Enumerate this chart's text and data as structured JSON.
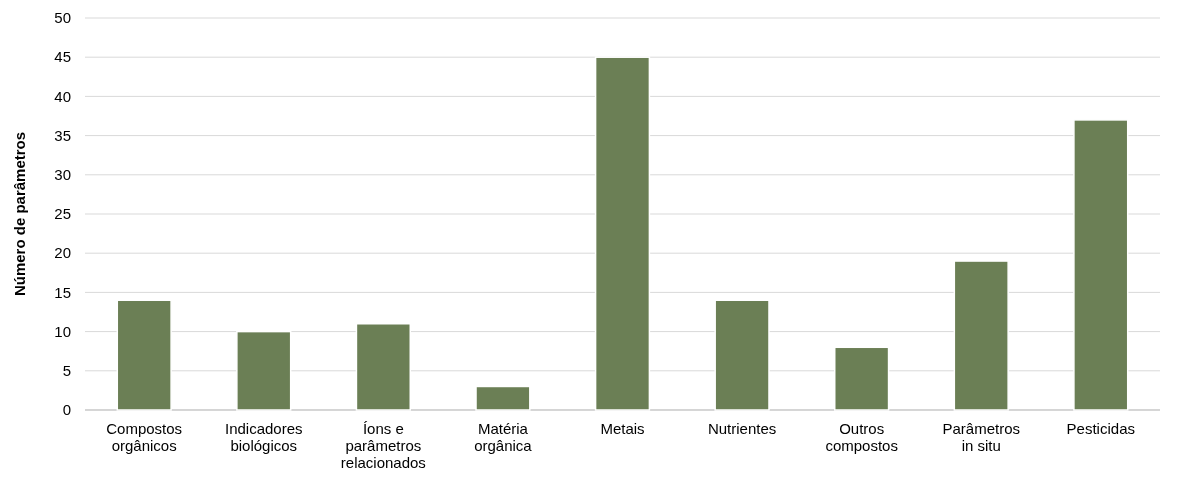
{
  "chart_data": {
    "type": "bar",
    "ylabel": "Número de parâmetros",
    "categories": [
      "Compostos orgânicos",
      "Indicadores biológicos",
      "Íons e parâmetros relacionados",
      "Matéria orgânica",
      "Metais",
      "Nutrientes",
      "Outros compostos",
      "Parâmetros in situ",
      "Pesticidas"
    ],
    "values": [
      14,
      10,
      11,
      3,
      45,
      14,
      8,
      19,
      37
    ],
    "color": "#6b7f55",
    "ylim": [
      0,
      50
    ],
    "yticks": [
      0,
      5,
      10,
      15,
      20,
      25,
      30,
      35,
      40,
      45,
      50
    ],
    "grid": "y"
  }
}
